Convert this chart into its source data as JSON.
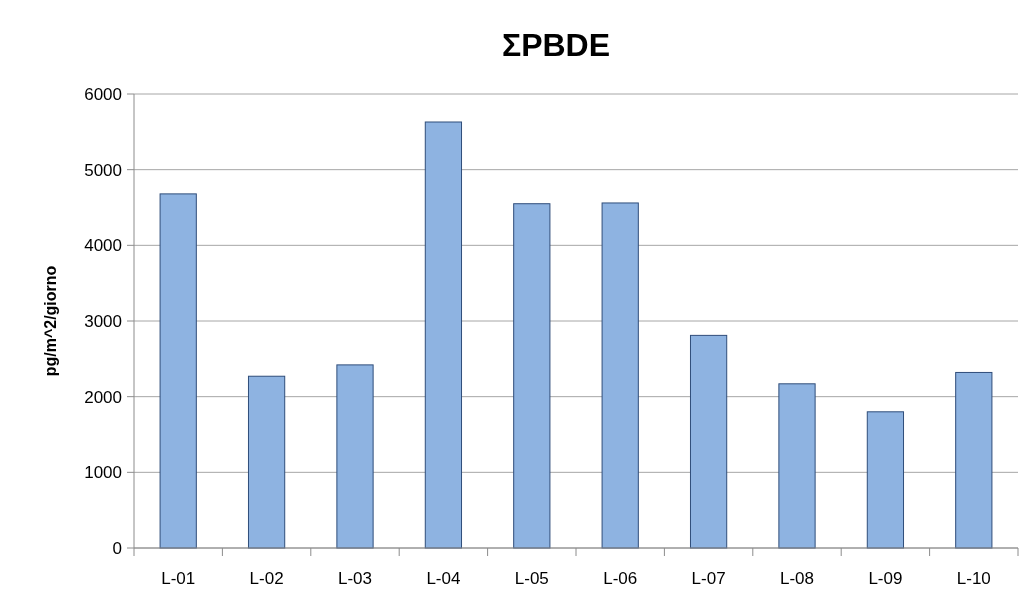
{
  "chart_data": {
    "type": "bar",
    "title": "ΣPBDE",
    "ylabel": "pg/m^2/giorno",
    "categories": [
      "L-01",
      "L-02",
      "L-03",
      "L-04",
      "L-05",
      "L-06",
      "L-07",
      "L-08",
      "L-09",
      "L-10"
    ],
    "values": [
      4680,
      2270,
      2420,
      5630,
      4550,
      4560,
      2810,
      2170,
      1800,
      2320
    ],
    "color": "#8eb3e1",
    "ylim": [
      0,
      6000
    ],
    "yticks": [
      0,
      1000,
      2000,
      3000,
      4000,
      5000,
      6000
    ],
    "grid": "y"
  }
}
